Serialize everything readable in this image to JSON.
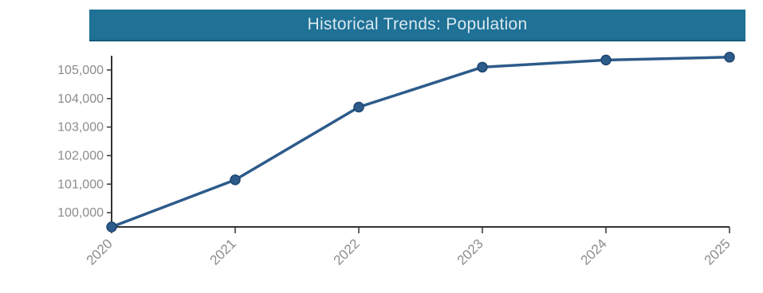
{
  "chart_data": {
    "type": "line",
    "title": "Historical Trends: Population",
    "xlabel": "",
    "ylabel": "",
    "x": [
      "2020",
      "2021",
      "2022",
      "2023",
      "2024",
      "2025"
    ],
    "series": [
      {
        "values": [
          99500,
          101150,
          103700,
          105100,
          105350,
          105450
        ]
      }
    ],
    "yticks": [
      100000,
      101000,
      102000,
      103000,
      104000,
      105000
    ],
    "ytick_labels": [
      "100,000",
      "101,000",
      "102,000",
      "103,000",
      "104,000",
      "105,000"
    ],
    "ylim": [
      99500,
      105500
    ],
    "grid": false,
    "legend": "none",
    "colors": {
      "title_bg": "#1f7196",
      "line": "#2d5b8a",
      "axis": "#333333",
      "tick_label": "#8c8c8c"
    }
  }
}
